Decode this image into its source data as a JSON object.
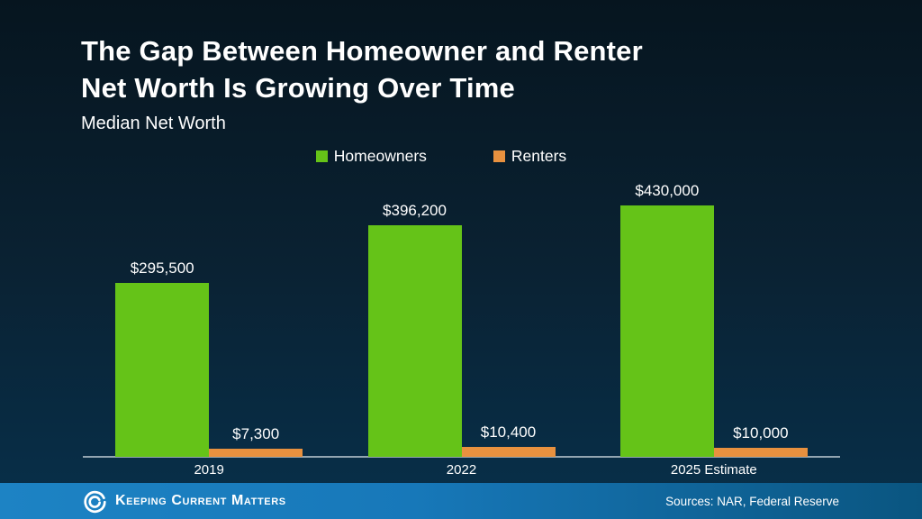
{
  "slide": {
    "title": "The Gap Between Homeowner and Renter\nNet Worth Is Growing Over Time",
    "subtitle": "Median Net Worth"
  },
  "footer": {
    "brand": "Keeping Current Matters",
    "sources": "Sources: NAR, Federal Reserve"
  },
  "colors": {
    "homeowners_green": "#65c318",
    "renters_orange": "#e8913f",
    "background_top": "#06151f",
    "background_bottom": "#07304b",
    "footer_blue_left": "#1d83c4",
    "footer_blue_right": "#0a5580",
    "axis_line": "#93a5b1",
    "text": "#ffffff"
  },
  "chart_data": {
    "type": "bar",
    "title": "The Gap Between Homeowner and Renter Net Worth Is Growing Over Time",
    "subtitle": "Median Net Worth",
    "categories": [
      "2019",
      "2022",
      "2025 Estimate"
    ],
    "series": [
      {
        "name": "Homeowners",
        "color": "#65c318",
        "values": [
          295500,
          396200,
          430000
        ],
        "labels": [
          "$295,500",
          "$396,200",
          "$430,000"
        ]
      },
      {
        "name": "Renters",
        "color": "#e8913f",
        "values": [
          7300,
          10400,
          10000
        ],
        "labels": [
          "$7,300",
          "$10,400",
          "$10,000"
        ]
      }
    ],
    "ylim": [
      0,
      430000
    ],
    "xlabel": "",
    "ylabel": "Median Net Worth ($)",
    "grid": false,
    "legend_position": "top-center",
    "value_prefix": "$"
  }
}
